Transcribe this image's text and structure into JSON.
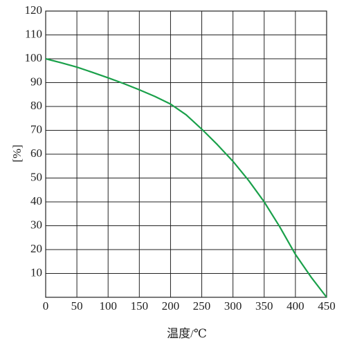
{
  "chart_data": {
    "type": "line",
    "x_label": "温度/℃",
    "y_label": "[%]",
    "x": [
      0,
      25,
      50,
      75,
      100,
      125,
      150,
      175,
      200,
      225,
      250,
      275,
      300,
      325,
      350,
      375,
      400,
      425,
      450
    ],
    "series": [
      {
        "color": "#1aa04a",
        "values": [
          100,
          98.3,
          96.5,
          94.3,
          92,
          89.6,
          87,
          84.2,
          81,
          76.5,
          70.5,
          64,
          57,
          49,
          40,
          29.5,
          18,
          8.5,
          0
        ]
      }
    ],
    "xlim": [
      0,
      450
    ],
    "xticks": [
      0,
      50,
      100,
      150,
      200,
      250,
      300,
      350,
      400,
      450
    ],
    "ylim": [
      0,
      120
    ],
    "yticks": [
      10,
      20,
      30,
      40,
      50,
      60,
      70,
      80,
      90,
      100,
      110,
      120
    ],
    "grid": true
  }
}
